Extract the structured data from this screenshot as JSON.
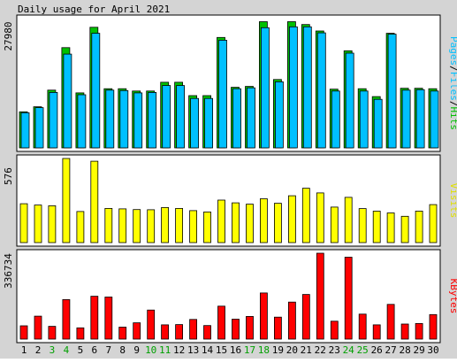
{
  "chart_data": {
    "type": "bar",
    "title": "Daily usage for April 2021",
    "x": [
      "1",
      "2",
      "3",
      "4",
      "5",
      "6",
      "7",
      "8",
      "9",
      "10",
      "11",
      "12",
      "13",
      "14",
      "15",
      "16",
      "17",
      "18",
      "19",
      "20",
      "21",
      "22",
      "23",
      "24",
      "25",
      "26",
      "27",
      "28",
      "29",
      "30"
    ],
    "weekend_days": [
      "3",
      "4",
      "10",
      "11",
      "17",
      "18",
      "24",
      "25"
    ],
    "panels": [
      {
        "id": "hits",
        "ymax": 27980,
        "ymax_label": "27980",
        "legend": [
          {
            "text": "Pages",
            "color": "#00c0ff"
          },
          {
            "text": "/",
            "color": "#000000"
          },
          {
            "text": "Files",
            "color": "#00c0ff"
          },
          {
            "text": "/",
            "color": "#000000"
          },
          {
            "text": "Hits",
            "color": "#00c000"
          }
        ],
        "series": [
          {
            "name": "Hits",
            "color": "#00c000",
            "values": [
              7800,
              8900,
              12500,
              21700,
              11900,
              26100,
              12800,
              12800,
              12300,
              12300,
              14200,
              14200,
              11300,
              11300,
              23900,
              13100,
              13300,
              27300,
              14800,
              27300,
              26700,
              25300,
              12700,
              21000,
              12800,
              11100,
              24800,
              12900,
              12900,
              12800
            ]
          },
          {
            "name": "Files",
            "color": "#00c0ff",
            "values": [
              7600,
              8700,
              12000,
              20300,
              11500,
              24800,
              12500,
              12400,
              11900,
              12000,
              13500,
              13500,
              10700,
              10700,
              23300,
              12800,
              13000,
              26000,
              14300,
              26200,
              26200,
              24900,
              12300,
              20500,
              12300,
              10500,
              24600,
              12500,
              12600,
              12300
            ]
          }
        ]
      },
      {
        "id": "visits",
        "ymax": 576,
        "ymax_label": "576",
        "legend": [
          {
            "text": "Visits",
            "color": "#e0e000"
          }
        ],
        "series": [
          {
            "name": "Visits",
            "color": "#ffff00",
            "values": [
              266,
              257,
              252,
              576,
              213,
              557,
              234,
              231,
              226,
              225,
              240,
              234,
              219,
              210,
              291,
              272,
              263,
              300,
              269,
              321,
              372,
              340,
              243,
              310,
              233,
              215,
              203,
              180,
              216,
              260
            ]
          }
        ]
      },
      {
        "id": "kbytes",
        "ymax": 336734,
        "ymax_label": "336734",
        "legend": [
          {
            "text": "KBytes",
            "color": "#ff0000"
          }
        ],
        "series": [
          {
            "name": "KBytes",
            "color": "#ff0000",
            "values": [
              52000,
              90000,
              50000,
              155000,
              44000,
              168000,
              165000,
              47000,
              64000,
              114000,
              56000,
              57000,
              77000,
              53000,
              129000,
              78000,
              89000,
              181000,
              86000,
              145000,
              175000,
              336734,
              70000,
              321000,
              98000,
              56000,
              136000,
              59000,
              61000,
              96000
            ]
          }
        ]
      }
    ]
  }
}
